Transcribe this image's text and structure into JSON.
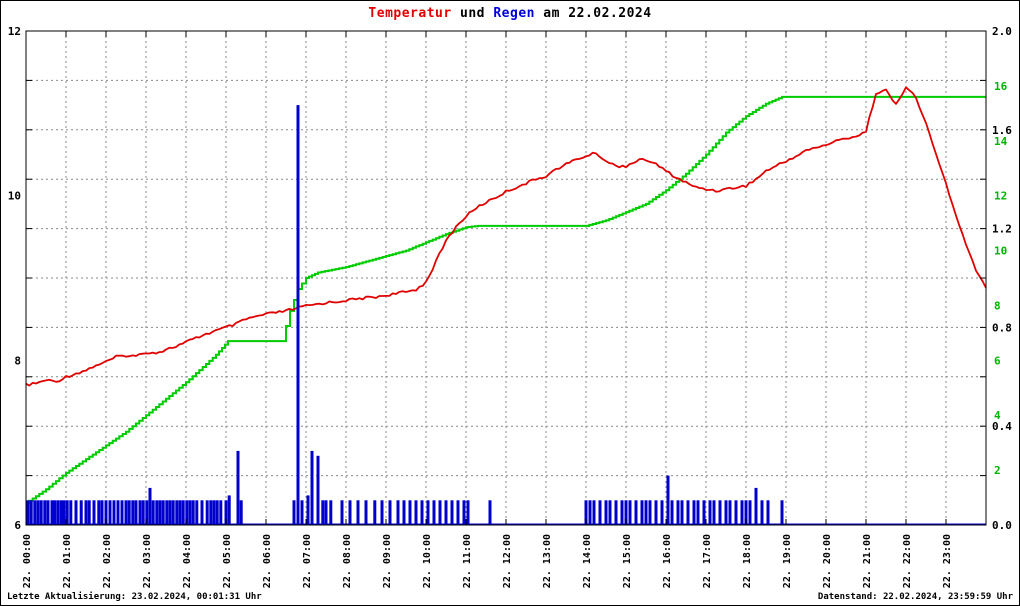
{
  "title": {
    "part_temperatur": "Temperatur",
    "part_und": " und ",
    "part_regen": "Regen",
    "part_date": " am 22.02.2024"
  },
  "footer": {
    "left": "Letzte Aktualisierung: 23.02.2024, 00:01:31 Uhr",
    "right": "Datenstand: 22.02.2024, 23:59:59 Uhr"
  },
  "colors": {
    "temperature": "#e00000",
    "rain_bars": "#0000cc",
    "rain_sum": "#00cc00",
    "grid": "#8a8a8a",
    "axis": "#000000",
    "background": "#ffffff"
  },
  "chart_data": {
    "type": "line+bar",
    "title": "Temperatur und Regen am 22.02.2024",
    "x_axis": {
      "range_hours": [
        0,
        24
      ],
      "tick_labels": [
        "22. 00:00",
        "22. 01:00",
        "22. 02:00",
        "22. 03:00",
        "22. 04:00",
        "22. 05:00",
        "22. 06:00",
        "22. 07:00",
        "22. 08:00",
        "22. 09:00",
        "22. 10:00",
        "22. 11:00",
        "22. 12:00",
        "22. 13:00",
        "22. 14:00",
        "22. 15:00",
        "22. 16:00",
        "22. 17:00",
        "22. 18:00",
        "22. 19:00",
        "22. 20:00",
        "22. 21:00",
        "22. 22:00",
        "22. 23:00"
      ]
    },
    "y_left": {
      "name": "temperature",
      "range": [
        6,
        12
      ],
      "tick_values": [
        6,
        8,
        10,
        12
      ],
      "tick_labels": [
        "6",
        "8",
        "10",
        "12"
      ]
    },
    "y_right_rain": {
      "name": "rain",
      "range": [
        0,
        2
      ],
      "tick_values": [
        0,
        0.4,
        0.8,
        1.2,
        1.6,
        2
      ],
      "tick_labels": [
        "0.0",
        "0.4",
        "0.8",
        "1.2",
        "1.6",
        "2.0"
      ]
    },
    "y_right_sum": {
      "name": "rain-sum",
      "range": [
        0,
        18
      ],
      "tick_values": [
        2,
        4,
        6,
        8,
        10,
        12,
        14,
        16
      ],
      "tick_labels": [
        "2",
        "4",
        "6",
        "8",
        "10",
        "12",
        "14",
        "16"
      ]
    },
    "grid": {
      "vertical_step_hours": 1,
      "horizontal_step_rain_axis": 0.2
    },
    "series": [
      {
        "name": "Temperatur",
        "type": "line",
        "axis": "left",
        "color": "#e00000",
        "x_start": 0,
        "x_step": 0.25,
        "values": [
          7.7,
          7.72,
          7.76,
          7.74,
          7.8,
          7.84,
          7.88,
          7.94,
          7.98,
          8.04,
          8.06,
          8.05,
          8.1,
          8.09,
          8.13,
          8.17,
          8.22,
          8.27,
          8.32,
          8.36,
          8.4,
          8.44,
          8.5,
          8.53,
          8.56,
          8.58,
          8.6,
          8.63,
          8.66,
          8.68,
          8.7,
          8.71,
          8.73,
          8.74,
          8.76,
          8.77,
          8.79,
          8.81,
          8.83,
          8.86,
          8.95,
          9.2,
          9.45,
          9.62,
          9.75,
          9.85,
          9.92,
          9.98,
          10.05,
          10.1,
          10.15,
          10.2,
          10.24,
          10.32,
          10.38,
          10.44,
          10.48,
          10.52,
          10.42,
          10.36,
          10.36,
          10.42,
          10.44,
          10.38,
          10.3,
          10.22,
          10.16,
          10.1,
          10.08,
          10.06,
          10.08,
          10.1,
          10.12,
          10.2,
          10.3,
          10.36,
          10.42,
          10.48,
          10.55,
          10.58,
          10.62,
          10.66,
          10.7,
          10.72,
          10.78,
          11.25,
          11.28,
          11.1,
          11.33,
          11.18,
          10.88,
          10.5,
          10.15,
          9.75,
          9.4,
          9.1,
          8.88
        ]
      },
      {
        "name": "Regensumme",
        "type": "step-line",
        "axis": "right_sum",
        "color": "#00cc00",
        "points": [
          [
            0,
            0.8
          ],
          [
            0.5,
            1.3
          ],
          [
            1,
            1.9
          ],
          [
            1.5,
            2.4
          ],
          [
            2,
            2.9
          ],
          [
            2.5,
            3.4
          ],
          [
            3,
            4.0
          ],
          [
            3.5,
            4.6
          ],
          [
            4,
            5.2
          ],
          [
            4.75,
            6.2
          ],
          [
            5.05,
            6.7
          ],
          [
            6.4,
            6.7
          ],
          [
            6.6,
            7.8
          ],
          [
            6.8,
            8.6
          ],
          [
            7.0,
            9.0
          ],
          [
            7.3,
            9.2
          ],
          [
            8.0,
            9.4
          ],
          [
            8.5,
            9.6
          ],
          [
            9.0,
            9.8
          ],
          [
            9.5,
            10.0
          ],
          [
            10.0,
            10.3
          ],
          [
            10.5,
            10.6
          ],
          [
            11.0,
            10.85
          ],
          [
            11.3,
            10.9
          ],
          [
            14.0,
            10.9
          ],
          [
            14.5,
            11.1
          ],
          [
            15.0,
            11.4
          ],
          [
            15.5,
            11.7
          ],
          [
            16.0,
            12.2
          ],
          [
            16.5,
            12.8
          ],
          [
            17.0,
            13.5
          ],
          [
            17.5,
            14.3
          ],
          [
            18.0,
            14.9
          ],
          [
            18.5,
            15.35
          ],
          [
            18.9,
            15.6
          ],
          [
            24.0,
            15.6
          ]
        ]
      },
      {
        "name": "Regen",
        "type": "bar",
        "axis": "right_rain",
        "color": "#0000cc",
        "points": [
          [
            0.05,
            0.1
          ],
          [
            0.13,
            0.1
          ],
          [
            0.22,
            0.1
          ],
          [
            0.3,
            0.1
          ],
          [
            0.38,
            0.1
          ],
          [
            0.47,
            0.1
          ],
          [
            0.55,
            0.1
          ],
          [
            0.65,
            0.1
          ],
          [
            0.72,
            0.1
          ],
          [
            0.8,
            0.1
          ],
          [
            0.88,
            0.1
          ],
          [
            0.95,
            0.1
          ],
          [
            1.03,
            0.1
          ],
          [
            1.12,
            0.1
          ],
          [
            1.25,
            0.1
          ],
          [
            1.38,
            0.1
          ],
          [
            1.5,
            0.1
          ],
          [
            1.58,
            0.1
          ],
          [
            1.7,
            0.1
          ],
          [
            1.82,
            0.1
          ],
          [
            1.9,
            0.1
          ],
          [
            2.0,
            0.1
          ],
          [
            2.1,
            0.1
          ],
          [
            2.2,
            0.1
          ],
          [
            2.3,
            0.1
          ],
          [
            2.4,
            0.1
          ],
          [
            2.5,
            0.1
          ],
          [
            2.58,
            0.1
          ],
          [
            2.67,
            0.1
          ],
          [
            2.75,
            0.1
          ],
          [
            2.85,
            0.1
          ],
          [
            2.93,
            0.1
          ],
          [
            3.02,
            0.1
          ],
          [
            3.1,
            0.15
          ],
          [
            3.18,
            0.1
          ],
          [
            3.27,
            0.1
          ],
          [
            3.35,
            0.1
          ],
          [
            3.43,
            0.1
          ],
          [
            3.52,
            0.1
          ],
          [
            3.6,
            0.1
          ],
          [
            3.68,
            0.1
          ],
          [
            3.77,
            0.1
          ],
          [
            3.85,
            0.1
          ],
          [
            3.93,
            0.1
          ],
          [
            4.02,
            0.1
          ],
          [
            4.1,
            0.1
          ],
          [
            4.18,
            0.1
          ],
          [
            4.27,
            0.1
          ],
          [
            4.4,
            0.1
          ],
          [
            4.53,
            0.1
          ],
          [
            4.62,
            0.1
          ],
          [
            4.7,
            0.1
          ],
          [
            4.78,
            0.1
          ],
          [
            4.87,
            0.1
          ],
          [
            5.0,
            0.1
          ],
          [
            5.08,
            0.12
          ],
          [
            5.3,
            0.3
          ],
          [
            5.38,
            0.1
          ],
          [
            6.7,
            0.1
          ],
          [
            6.8,
            1.7
          ],
          [
            6.9,
            0.1
          ],
          [
            7.05,
            0.12
          ],
          [
            7.15,
            0.3
          ],
          [
            7.3,
            0.28
          ],
          [
            7.42,
            0.1
          ],
          [
            7.5,
            0.1
          ],
          [
            7.62,
            0.1
          ],
          [
            7.9,
            0.1
          ],
          [
            8.1,
            0.1
          ],
          [
            8.3,
            0.1
          ],
          [
            8.5,
            0.1
          ],
          [
            8.72,
            0.1
          ],
          [
            8.9,
            0.1
          ],
          [
            9.1,
            0.1
          ],
          [
            9.3,
            0.1
          ],
          [
            9.45,
            0.1
          ],
          [
            9.6,
            0.1
          ],
          [
            9.75,
            0.1
          ],
          [
            9.9,
            0.1
          ],
          [
            10.05,
            0.1
          ],
          [
            10.2,
            0.1
          ],
          [
            10.35,
            0.1
          ],
          [
            10.5,
            0.1
          ],
          [
            10.65,
            0.1
          ],
          [
            10.8,
            0.1
          ],
          [
            10.95,
            0.1
          ],
          [
            11.05,
            0.1
          ],
          [
            11.6,
            0.1
          ],
          [
            14.0,
            0.1
          ],
          [
            14.1,
            0.1
          ],
          [
            14.2,
            0.1
          ],
          [
            14.35,
            0.1
          ],
          [
            14.5,
            0.1
          ],
          [
            14.6,
            0.1
          ],
          [
            14.75,
            0.1
          ],
          [
            14.9,
            0.1
          ],
          [
            15.0,
            0.1
          ],
          [
            15.1,
            0.1
          ],
          [
            15.25,
            0.1
          ],
          [
            15.4,
            0.1
          ],
          [
            15.5,
            0.1
          ],
          [
            15.6,
            0.1
          ],
          [
            15.75,
            0.1
          ],
          [
            15.9,
            0.1
          ],
          [
            16.05,
            0.2
          ],
          [
            16.15,
            0.1
          ],
          [
            16.3,
            0.1
          ],
          [
            16.4,
            0.1
          ],
          [
            16.55,
            0.1
          ],
          [
            16.7,
            0.1
          ],
          [
            16.8,
            0.1
          ],
          [
            16.95,
            0.1
          ],
          [
            17.1,
            0.1
          ],
          [
            17.2,
            0.1
          ],
          [
            17.35,
            0.1
          ],
          [
            17.5,
            0.1
          ],
          [
            17.6,
            0.1
          ],
          [
            17.75,
            0.1
          ],
          [
            17.9,
            0.1
          ],
          [
            18.0,
            0.1
          ],
          [
            18.1,
            0.1
          ],
          [
            18.25,
            0.15
          ],
          [
            18.4,
            0.1
          ],
          [
            18.55,
            0.1
          ],
          [
            18.9,
            0.1
          ]
        ]
      }
    ]
  }
}
